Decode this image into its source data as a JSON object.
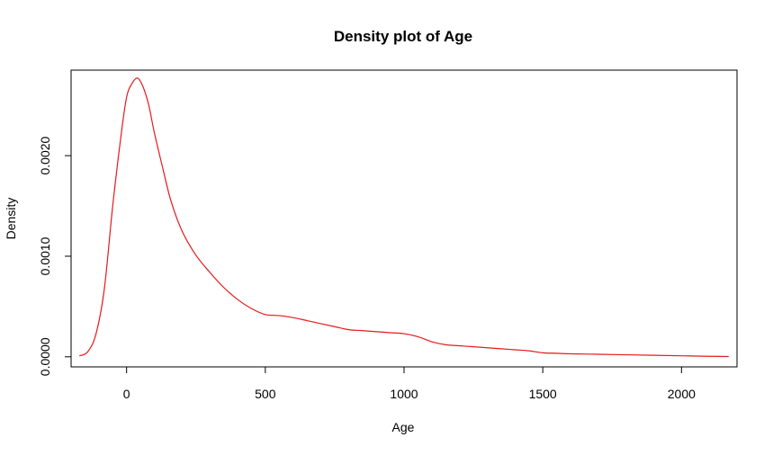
{
  "chart_data": {
    "type": "line",
    "title": "Density plot of Age",
    "xlabel": "Age",
    "ylabel": "Density",
    "xlim": [
      -200,
      2200
    ],
    "ylim": [
      -0.0001,
      0.00285
    ],
    "x_ticks": [
      0,
      500,
      1000,
      1500,
      2000
    ],
    "x_tick_labels": [
      "0",
      "500",
      "1000",
      "1500",
      "2000"
    ],
    "y_ticks": [
      0,
      0.001,
      0.002
    ],
    "y_tick_labels": [
      "0.0000",
      "0.0010",
      "0.0020"
    ],
    "grid": false,
    "legend": "none",
    "color": "#e41a1c",
    "series": [
      {
        "x": [
          -170,
          -140,
          -110,
          -80,
          -50,
          -20,
          0,
          20,
          40,
          60,
          80,
          100,
          130,
          160,
          200,
          250,
          300,
          350,
          400,
          450,
          500,
          550,
          600,
          650,
          700,
          750,
          800,
          850,
          900,
          950,
          1000,
          1050,
          1100,
          1150,
          1200,
          1250,
          1300,
          1350,
          1400,
          1450,
          1500,
          1550,
          1600,
          1700,
          1800,
          1900,
          2000,
          2100,
          2170
        ],
        "y": [
          1e-05,
          5e-05,
          0.00023,
          0.00068,
          0.0015,
          0.0022,
          0.00258,
          0.00272,
          0.00277,
          0.00268,
          0.0025,
          0.00223,
          0.00188,
          0.00155,
          0.00125,
          0.00101,
          0.00084,
          0.00069,
          0.00057,
          0.00048,
          0.00042,
          0.00041,
          0.00039,
          0.00036,
          0.00033,
          0.0003,
          0.00027,
          0.00026,
          0.00025,
          0.00024,
          0.00023,
          0.0002,
          0.00015,
          0.00012,
          0.00011,
          0.0001,
          9e-05,
          8e-05,
          7e-05,
          6e-05,
          4e-05,
          3.5e-05,
          3e-05,
          2.5e-05,
          2e-05,
          1.5e-05,
          1e-05,
          5e-06,
          3e-06
        ]
      }
    ]
  }
}
